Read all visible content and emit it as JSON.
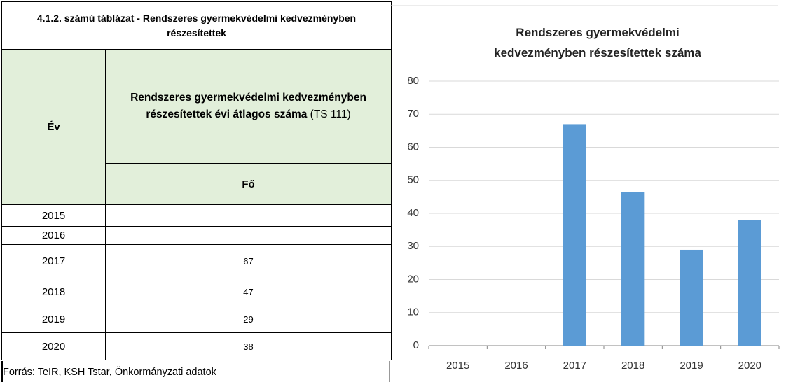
{
  "table": {
    "title": "4.1.2. számú táblázat - Rendszeres gyermekvédelmi kedvezményben részesítettek",
    "col_year": "Év",
    "col_value_bold": "Rendszeres gyermekvédelmi kedvezményben részesítettek évi átlagos száma",
    "col_value_suffix": "(TS 111)",
    "unit": "Fő",
    "rows": [
      [
        "2015",
        null
      ],
      [
        "2016",
        null
      ],
      [
        "2017",
        67
      ],
      [
        "2018",
        47
      ],
      [
        "2019",
        29
      ],
      [
        "2020",
        38
      ]
    ]
  },
  "source": "Forrás: TeIR, KSH Tstar, Önkormányzati adatok",
  "chart_data": {
    "type": "bar",
    "title": "Rendszeres gyermekvédelmi kedvezményben részesítettek száma",
    "categories": [
      "2015",
      "2016",
      "2017",
      "2018",
      "2019",
      "2020"
    ],
    "values": [
      null,
      null,
      67,
      46.5,
      29,
      38
    ],
    "color": "#5b9bd5",
    "ylim": [
      0,
      80
    ],
    "yticks": [
      0,
      10,
      20,
      30,
      40,
      50,
      60,
      70,
      80
    ],
    "grid": true
  }
}
